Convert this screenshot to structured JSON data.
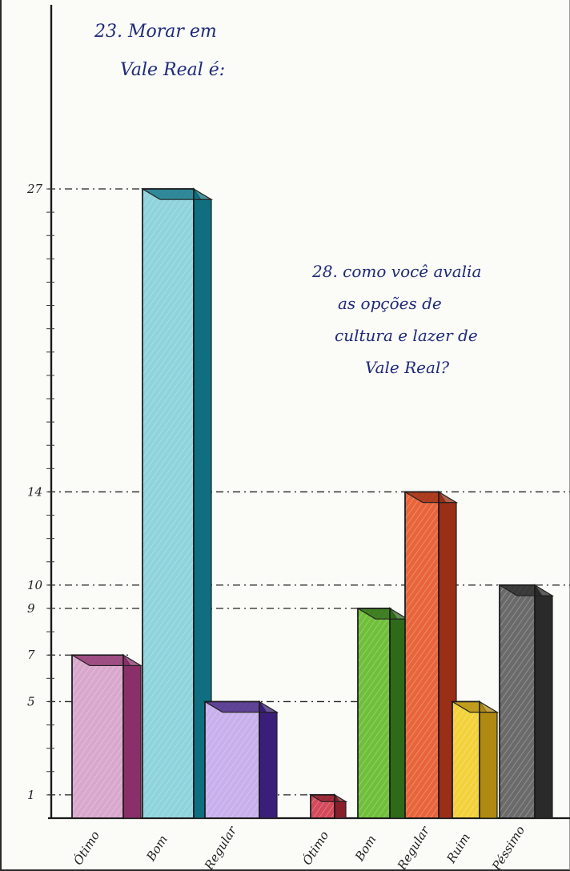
{
  "chart_data": [
    {
      "type": "bar",
      "title_lines": [
        "23. Morar em",
        "Vale Real é:"
      ],
      "categories": [
        "Ótimo",
        "Bom",
        "Regular"
      ],
      "values": [
        7,
        27,
        5
      ],
      "colors": [
        "#d9a7cc",
        "#8fd3dc",
        "#c7b0ec"
      ],
      "side_colors": [
        "#8a2f6a",
        "#0f6f80",
        "#3b1e7a"
      ]
    },
    {
      "type": "bar",
      "title_lines": [
        "28. como você avalia",
        "as opções de",
        "cultura e lazer de",
        "Vale Real?"
      ],
      "categories": [
        "Ótimo",
        "Bom",
        "Regular",
        "Ruim",
        "Péssimo"
      ],
      "values": [
        1,
        9,
        14,
        5,
        10
      ],
      "colors": [
        "#d44a5a",
        "#6fbf3a",
        "#e8643a",
        "#f2d23a",
        "#6a6a6a"
      ],
      "side_colors": [
        "#8a1f2c",
        "#2f6a1a",
        "#9a2e16",
        "#b08a10",
        "#2a2a2a"
      ]
    }
  ],
  "y_ticks": [
    "27",
    "14",
    "10",
    "9",
    "7",
    "5",
    "1"
  ]
}
